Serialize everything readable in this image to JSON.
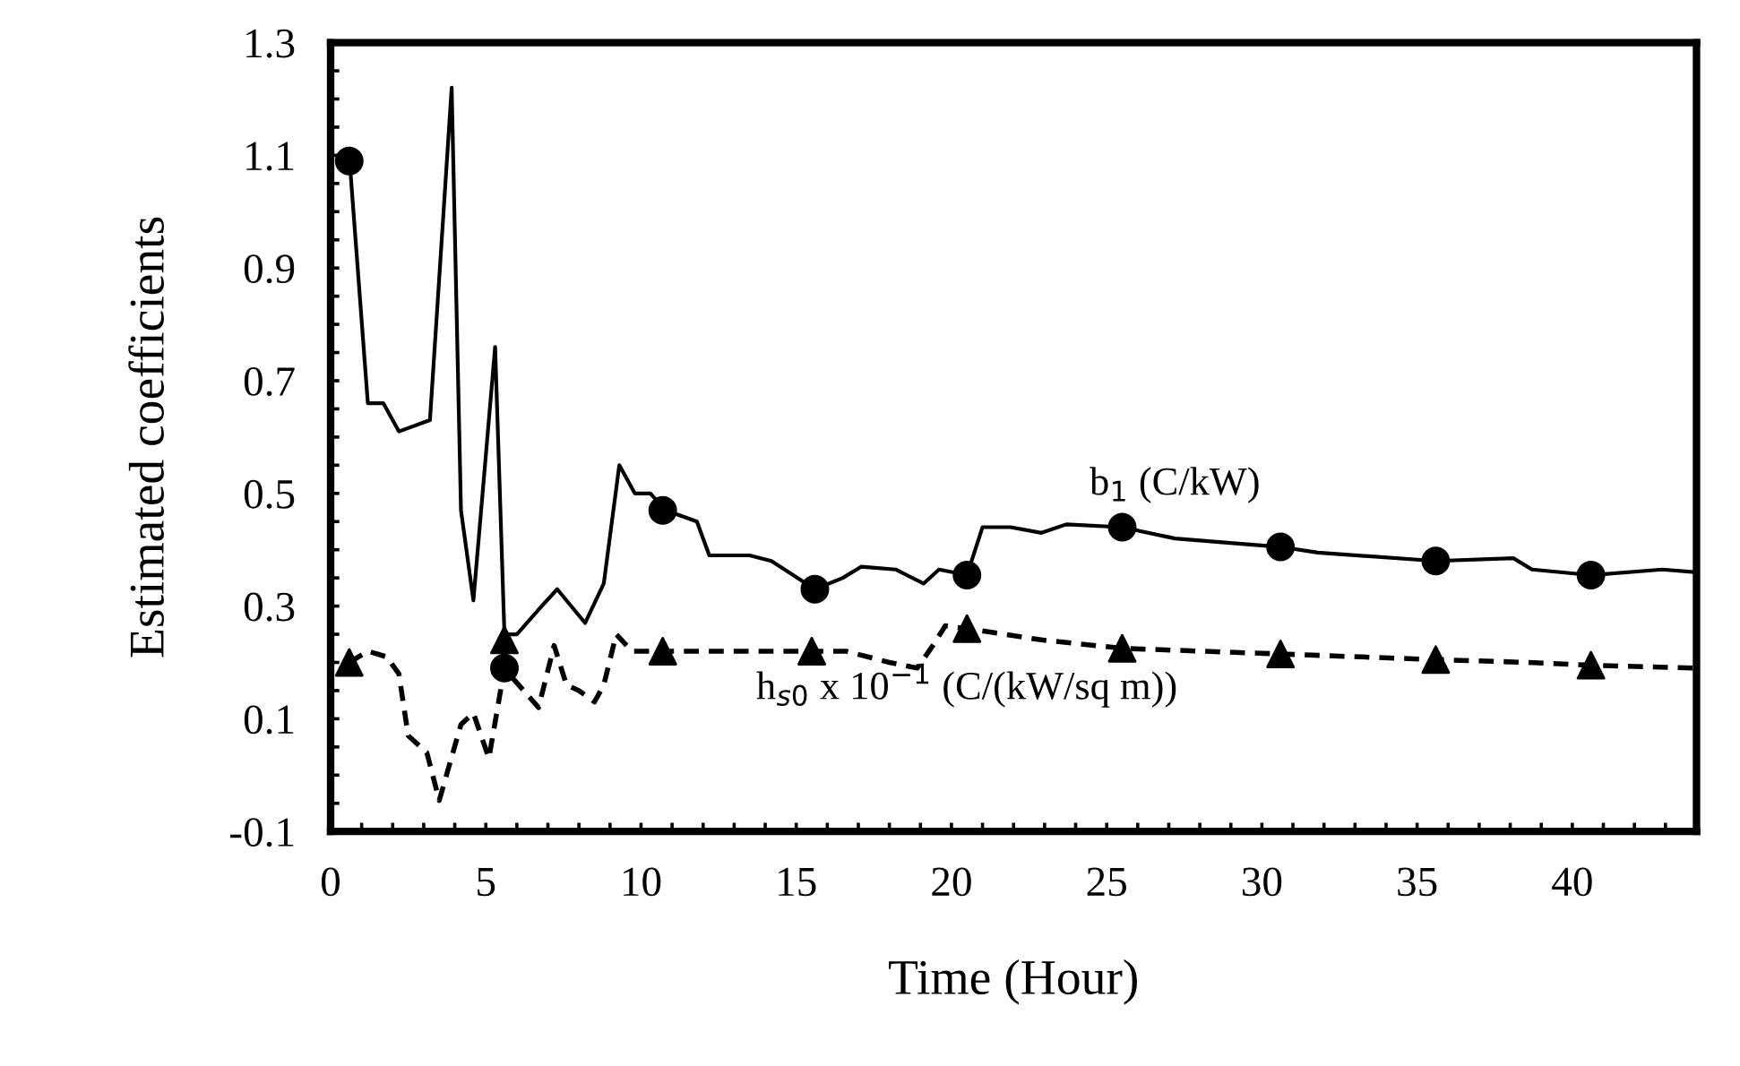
{
  "chart_data": {
    "type": "line",
    "xlabel": "Time (Hour)",
    "ylabel": "Estimated coefficients",
    "xlim": [
      0,
      44
    ],
    "ylim": [
      -0.1,
      1.3
    ],
    "xticks": [
      0,
      {
        "value": 1,
        "label": null
      },
      {
        "value": 2,
        "label": null
      },
      {
        "value": 3,
        "label": null
      },
      {
        "value": 4,
        "label": null
      },
      5,
      {
        "value": 6,
        "label": null
      },
      {
        "value": 7,
        "label": null
      },
      {
        "value": 8,
        "label": null
      },
      {
        "value": 9,
        "label": null
      },
      10,
      {
        "value": 11,
        "label": null
      },
      {
        "value": 12,
        "label": null
      },
      {
        "value": 13,
        "label": null
      },
      {
        "value": 14,
        "label": null
      },
      15,
      {
        "value": 16,
        "label": null
      },
      {
        "value": 17,
        "label": null
      },
      {
        "value": 18,
        "label": null
      },
      {
        "value": 19,
        "label": null
      },
      20,
      {
        "value": 21,
        "label": null
      },
      {
        "value": 22,
        "label": null
      },
      {
        "value": 23,
        "label": null
      },
      {
        "value": 24,
        "label": null
      },
      25,
      {
        "value": 26,
        "label": null
      },
      {
        "value": 27,
        "label": null
      },
      {
        "value": 28,
        "label": null
      },
      {
        "value": 29,
        "label": null
      },
      30,
      {
        "value": 31,
        "label": null
      },
      {
        "value": 32,
        "label": null
      },
      {
        "value": 33,
        "label": null
      },
      {
        "value": 34,
        "label": null
      },
      35,
      {
        "value": 36,
        "label": null
      },
      {
        "value": 37,
        "label": null
      },
      {
        "value": 38,
        "label": null
      },
      {
        "value": 39,
        "label": null
      },
      40,
      {
        "value": 41,
        "label": null
      },
      {
        "value": 42,
        "label": null
      },
      {
        "value": 43,
        "label": null
      }
    ],
    "yticks": [
      -0.1,
      {
        "value": -0.05,
        "label": null
      },
      {
        "value": 0.0,
        "label": null
      },
      {
        "value": 0.05,
        "label": null
      },
      0.1,
      {
        "value": 0.15,
        "label": null
      },
      {
        "value": 0.2,
        "label": null
      },
      {
        "value": 0.25,
        "label": null
      },
      0.3,
      {
        "value": 0.35,
        "label": null
      },
      {
        "value": 0.4,
        "label": null
      },
      {
        "value": 0.45,
        "label": null
      },
      0.5,
      {
        "value": 0.55,
        "label": null
      },
      {
        "value": 0.6,
        "label": null
      },
      {
        "value": 0.65,
        "label": null
      },
      0.7,
      {
        "value": 0.75,
        "label": null
      },
      {
        "value": 0.8,
        "label": null
      },
      {
        "value": 0.85,
        "label": null
      },
      0.9,
      {
        "value": 0.95,
        "label": null
      },
      {
        "value": 1.0,
        "label": null
      },
      {
        "value": 1.05,
        "label": null
      },
      1.1,
      {
        "value": 1.15,
        "label": null
      },
      {
        "value": 1.2,
        "label": null
      },
      {
        "value": 1.25,
        "label": null
      },
      1.3
    ],
    "grid": false,
    "marker": "none",
    "series": [
      {
        "name": "b$_{1}$ (C/kW)",
        "line_style": "solid",
        "color": "#000000",
        "x": [
          0.6,
          1.2,
          1.7,
          2.2,
          3.2,
          3.9,
          4.2,
          4.6,
          5.3,
          5.6,
          6.0,
          6.8,
          7.3,
          8.2,
          8.8,
          9.3,
          9.8,
          10.3,
          10.8,
          11.8,
          12.2,
          13.5,
          14.2,
          15.6,
          16.5,
          17.1,
          18.2,
          19.1,
          19.6,
          20.5,
          21.0,
          21.9,
          22.9,
          23.7,
          25.5,
          27.2,
          30.6,
          31.8,
          35.6,
          38.1,
          38.7,
          40.6,
          42.9,
          44
        ],
        "values": [
          1.1,
          0.66,
          0.66,
          0.61,
          0.63,
          1.22,
          0.47,
          0.31,
          0.76,
          0.25,
          0.25,
          0.3,
          0.33,
          0.27,
          0.34,
          0.55,
          0.5,
          0.5,
          0.47,
          0.45,
          0.39,
          0.39,
          0.38,
          0.33,
          0.35,
          0.37,
          0.365,
          0.34,
          0.365,
          0.355,
          0.44,
          0.44,
          0.43,
          0.445,
          0.44,
          0.42,
          0.405,
          0.395,
          0.38,
          0.385,
          0.365,
          0.355,
          0.365,
          0.36
        ]
      },
      {
        "name": "h$_{s0}$ x 10$^{−1}$ (C/(kW/sq m))",
        "line_style": "dashed",
        "color": "#000000",
        "x": [
          0.6,
          1.2,
          1.8,
          2.2,
          2.5,
          3.1,
          3.5,
          4.2,
          4.6,
          5.1,
          5.6,
          5.9,
          6.7,
          7.2,
          7.6,
          8.0,
          8.5,
          8.8,
          9.2,
          9.7,
          10.7,
          13.4,
          15.5,
          16.6,
          18.0,
          18.9,
          19.4,
          19.8,
          20.5,
          22.9,
          25.5,
          30.6,
          35.6,
          38.6,
          40.6,
          44
        ],
        "values": [
          0.2,
          0.22,
          0.21,
          0.18,
          0.07,
          0.04,
          -0.045,
          0.09,
          0.11,
          0.03,
          0.19,
          0.17,
          0.12,
          0.23,
          0.16,
          0.15,
          0.13,
          0.16,
          0.25,
          0.22,
          0.22,
          0.22,
          0.22,
          0.22,
          0.2,
          0.19,
          0.23,
          0.265,
          0.26,
          0.24,
          0.225,
          0.215,
          0.205,
          0.2,
          0.195,
          0.19
        ]
      },
      {
        "type": "scatter",
        "marker": "circle",
        "color": "#000000",
        "x": [
          0.6,
          5.6,
          10.7,
          15.6,
          20.5,
          25.5,
          30.6,
          35.6,
          40.6
        ],
        "values": [
          1.09,
          0.19,
          0.47,
          0.33,
          0.355,
          0.44,
          0.405,
          0.38,
          0.355
        ]
      },
      {
        "type": "scatter",
        "marker": "triangle",
        "color": "#000000",
        "x": [
          0.6,
          5.6,
          10.7,
          15.5,
          20.5,
          25.5,
          30.6,
          35.6,
          40.6
        ],
        "values": [
          0.2,
          0.24,
          0.22,
          0.22,
          0.26,
          0.225,
          0.215,
          0.205,
          0.195
        ]
      }
    ]
  }
}
